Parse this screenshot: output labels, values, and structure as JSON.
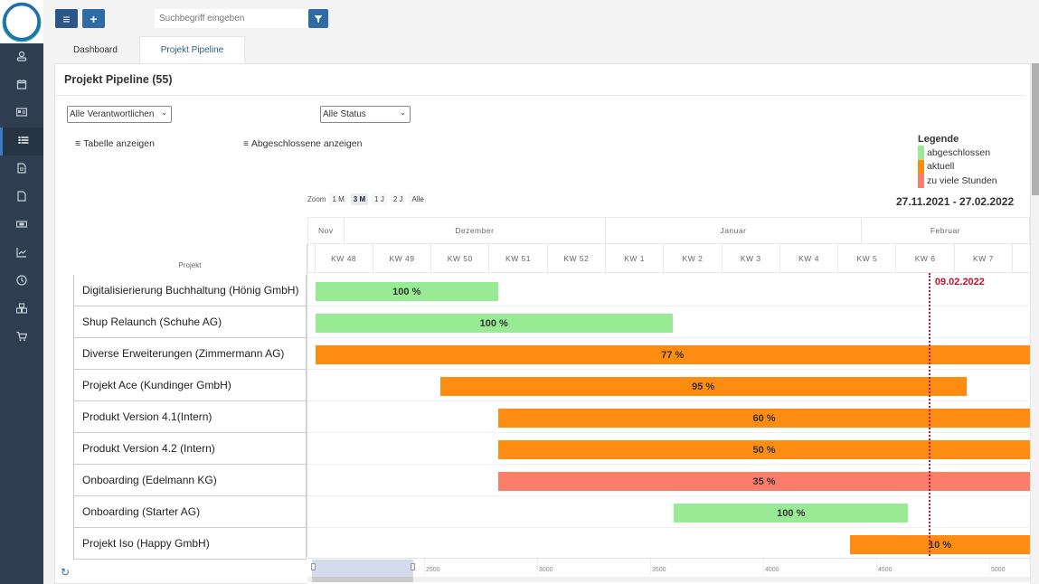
{
  "app": {
    "logo": "app-logo"
  },
  "sidebar": {
    "items": [
      {
        "name": "user",
        "icon": "user-icon"
      },
      {
        "name": "calendar",
        "icon": "calendar-icon"
      },
      {
        "name": "contacts",
        "icon": "id-card-icon"
      },
      {
        "name": "projects",
        "icon": "list-icon",
        "active": true
      },
      {
        "name": "documents",
        "icon": "document-icon"
      },
      {
        "name": "file",
        "icon": "file-icon"
      },
      {
        "name": "money",
        "icon": "money-icon"
      },
      {
        "name": "reports",
        "icon": "chart-icon"
      },
      {
        "name": "time",
        "icon": "clock-icon"
      },
      {
        "name": "inventory",
        "icon": "boxes-icon"
      },
      {
        "name": "shop",
        "icon": "cart-icon"
      }
    ]
  },
  "toolbar": {
    "menu_icon": "≡",
    "add_icon": "+",
    "search_placeholder": "Suchbegriff eingeben",
    "filter_icon": "filter-icon"
  },
  "tabs": [
    {
      "label": "Dashboard",
      "active": false
    },
    {
      "label": "Projekt Pipeline",
      "active": true
    }
  ],
  "panel": {
    "title": "Projekt Pipeline (55)",
    "filter_owner": "Alle Verantwortlichen",
    "filter_status": "Alle Status",
    "show_table": "Tabelle anzeigen",
    "show_completed": "Abgeschlossene anzeigen",
    "legend": {
      "title": "Legende",
      "items": [
        {
          "label": "abgeschlossen",
          "color": "#98ea94"
        },
        {
          "label": "aktuell",
          "color": "#fd8c12"
        },
        {
          "label": "zu viele Stunden",
          "color": "#fc7d6a"
        }
      ]
    },
    "zoom": {
      "label": "Zoom",
      "options": [
        "1 M",
        "3 M",
        "1 J",
        "2 J",
        "Alle"
      ],
      "selected": "3 M"
    },
    "date_range": "27.11.2021 - 27.02.2022"
  },
  "gantt": {
    "column_header": "Projekt",
    "months": [
      {
        "label": "Nov",
        "start": 0,
        "end": 0.5
      },
      {
        "label": "Dezember",
        "start": 0.5,
        "end": 5
      },
      {
        "label": "Januar",
        "start": 5,
        "end": 9.4
      },
      {
        "label": "Februar",
        "start": 9.4,
        "end": 12.5
      }
    ],
    "weeks": [
      "KW 48",
      "KW 49",
      "KW 50",
      "KW 51",
      "KW 52",
      "KW 1",
      "KW 2",
      "KW 3",
      "KW 4",
      "KW 5",
      "KW 6",
      "KW 7"
    ],
    "today": {
      "label": "09.02.2022",
      "week_pos": 10.55
    },
    "projects": [
      {
        "name": "Digitalisierierung Buchhaltung (Hönig GmbH)",
        "start": 0,
        "end": 3.15,
        "progress": "100 %",
        "status": "abgeschlossen"
      },
      {
        "name": "Shup Relaunch (Schuhe AG)",
        "start": 0,
        "end": 6.15,
        "progress": "100 %",
        "status": "abgeschlossen"
      },
      {
        "name": "Diverse Erweiterungen (Zimmermann AG)",
        "start": 0,
        "end": 12.5,
        "progress": "77 %",
        "status": "aktuell"
      },
      {
        "name": "Projekt Ace (Kundinger GmbH)",
        "start": 2.15,
        "end": 11.2,
        "progress": "95 %",
        "status": "aktuell"
      },
      {
        "name": "Produkt Version 4.1(Intern)",
        "start": 3.15,
        "end": 12.5,
        "progress": "60 %",
        "status": "aktuell"
      },
      {
        "name": "Produkt Version 4.2 (Intern)",
        "start": 3.15,
        "end": 12.5,
        "progress": "50 %",
        "status": "aktuell"
      },
      {
        "name": "Onboarding (Edelmann KG)",
        "start": 3.15,
        "end": 12.5,
        "progress": "35 %",
        "status": "zu viele Stunden"
      },
      {
        "name": "Onboarding (Starter AG)",
        "start": 6.17,
        "end": 10.2,
        "progress": "100 %",
        "status": "abgeschlossen"
      },
      {
        "name": "Projekt Iso (Happy GmbH)",
        "start": 9.2,
        "end": 12.5,
        "progress": "10 %",
        "status": "aktuell"
      }
    ],
    "navigator_ticks": [
      "2500",
      "3000",
      "3500",
      "4000",
      "4500",
      "5000"
    ]
  }
}
